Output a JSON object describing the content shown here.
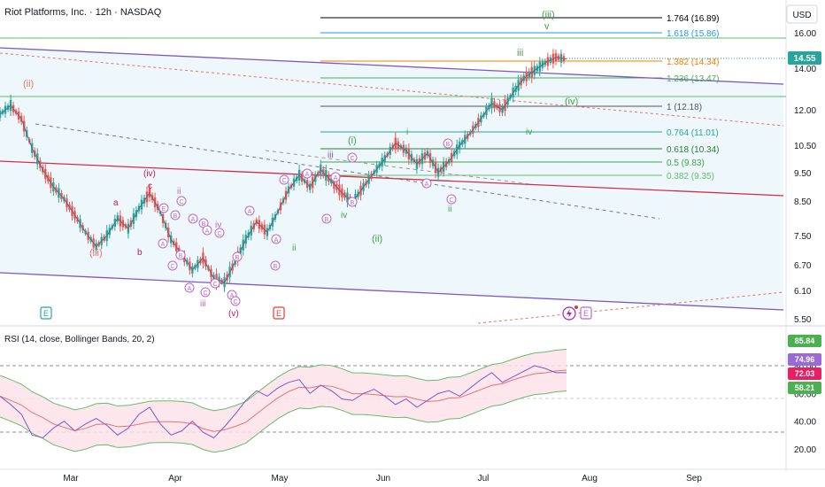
{
  "header": {
    "symbol_title": "Riot Platforms, Inc. · 12h · NASDAQ",
    "currency": "USD"
  },
  "price_axis": {
    "labels": [
      "16.00",
      "14.00",
      "12.00",
      "10.50",
      "9.50",
      "8.50",
      "7.50",
      "6.70",
      "6.10",
      "5.50"
    ],
    "values": [
      16.0,
      14.0,
      12.0,
      10.5,
      9.5,
      8.5,
      7.5,
      6.7,
      6.1,
      5.5
    ],
    "last_price": "14.55"
  },
  "time_axis": {
    "labels": [
      "Mar",
      "Apr",
      "May",
      "Jun",
      "Jul",
      "Aug",
      "Sep"
    ]
  },
  "fib_levels": [
    {
      "label": "1.764 (16.89)",
      "color": "#000000"
    },
    {
      "label": "1.618 (15.86)",
      "color": "#2196f3"
    },
    {
      "label": "1.382 (14.34)",
      "color": "#f57c00"
    },
    {
      "label": "1.236 (13.47)",
      "color": "#4caf50"
    },
    {
      "label": "1 (12.18)",
      "color": "#555555"
    },
    {
      "label": "0.764 (11.01)",
      "color": "#26a69a"
    },
    {
      "label": "0.618 (10.34)",
      "color": "#2e7d32"
    },
    {
      "label": "0.5 (9.83)",
      "color": "#43a047"
    },
    {
      "label": "0.382 (9.35)",
      "color": "#66bb6a"
    }
  ],
  "wave_labels": {
    "ii_major": "(ii)",
    "iii_major": "(iii)",
    "iii_top": "(iii)",
    "iv_major": "(iv)",
    "v_top": "v",
    "iii_minor": "iii",
    "iv_minor": "iv",
    "i_paren": "(i)",
    "ii_paren": "(ii)",
    "iv_small": "iv",
    "ii_small": "ii",
    "i_small": "i",
    "ii_green": "ii",
    "a": "a",
    "b": "b",
    "c": "c",
    "iv_paren_red": "(iv)",
    "v_paren_red": "(v)",
    "iii_small2": "iii",
    "iii_sm": "iii"
  },
  "events": {
    "earnings_1": "E",
    "earnings_2": "E",
    "earnings_3": "E"
  },
  "rsi": {
    "title": "RSI (14, close, Bollinger Bands, 20, 2)",
    "axis_labels": [
      "80.00",
      "60.00",
      "40.00",
      "20.00"
    ],
    "badges": [
      {
        "label": "85.84",
        "color": "#4caf50"
      },
      {
        "label": "74.96",
        "color": "#9c6ad6"
      },
      {
        "label": "72.03",
        "color": "#e91e63"
      },
      {
        "label": "58.21",
        "color": "#4caf50"
      }
    ]
  },
  "chart_data": {
    "type": "line",
    "title": "Riot Platforms, Inc. · 12h · NASDAQ",
    "price_path": [
      11.8,
      12.2,
      11.6,
      10.4,
      9.6,
      9.0,
      8.6,
      8.1,
      7.6,
      7.2,
      7.5,
      8.0,
      7.7,
      8.3,
      8.8,
      8.2,
      7.4,
      7.0,
      6.6,
      6.9,
      6.4,
      6.3,
      6.8,
      7.4,
      7.9,
      7.6,
      8.2,
      8.9,
      9.4,
      9.0,
      9.6,
      9.2,
      8.8,
      8.5,
      9.0,
      9.5,
      10.0,
      10.6,
      10.3,
      9.8,
      10.2,
      9.5,
      9.9,
      10.5,
      11.0,
      11.6,
      12.3,
      12.0,
      12.8,
      13.5,
      13.9,
      14.3,
      14.6,
      14.5
    ],
    "rsi_path": [
      58,
      52,
      45,
      30,
      28,
      35,
      40,
      33,
      38,
      42,
      37,
      30,
      35,
      45,
      50,
      38,
      30,
      33,
      40,
      32,
      28,
      36,
      45,
      55,
      62,
      58,
      64,
      68,
      70,
      60,
      66,
      62,
      56,
      55,
      60,
      63,
      58,
      52,
      56,
      50,
      55,
      60,
      62,
      58,
      64,
      70,
      75,
      68,
      72,
      76,
      80,
      78,
      75,
      74.96
    ],
    "ylim": [
      5.5,
      17.0
    ]
  }
}
